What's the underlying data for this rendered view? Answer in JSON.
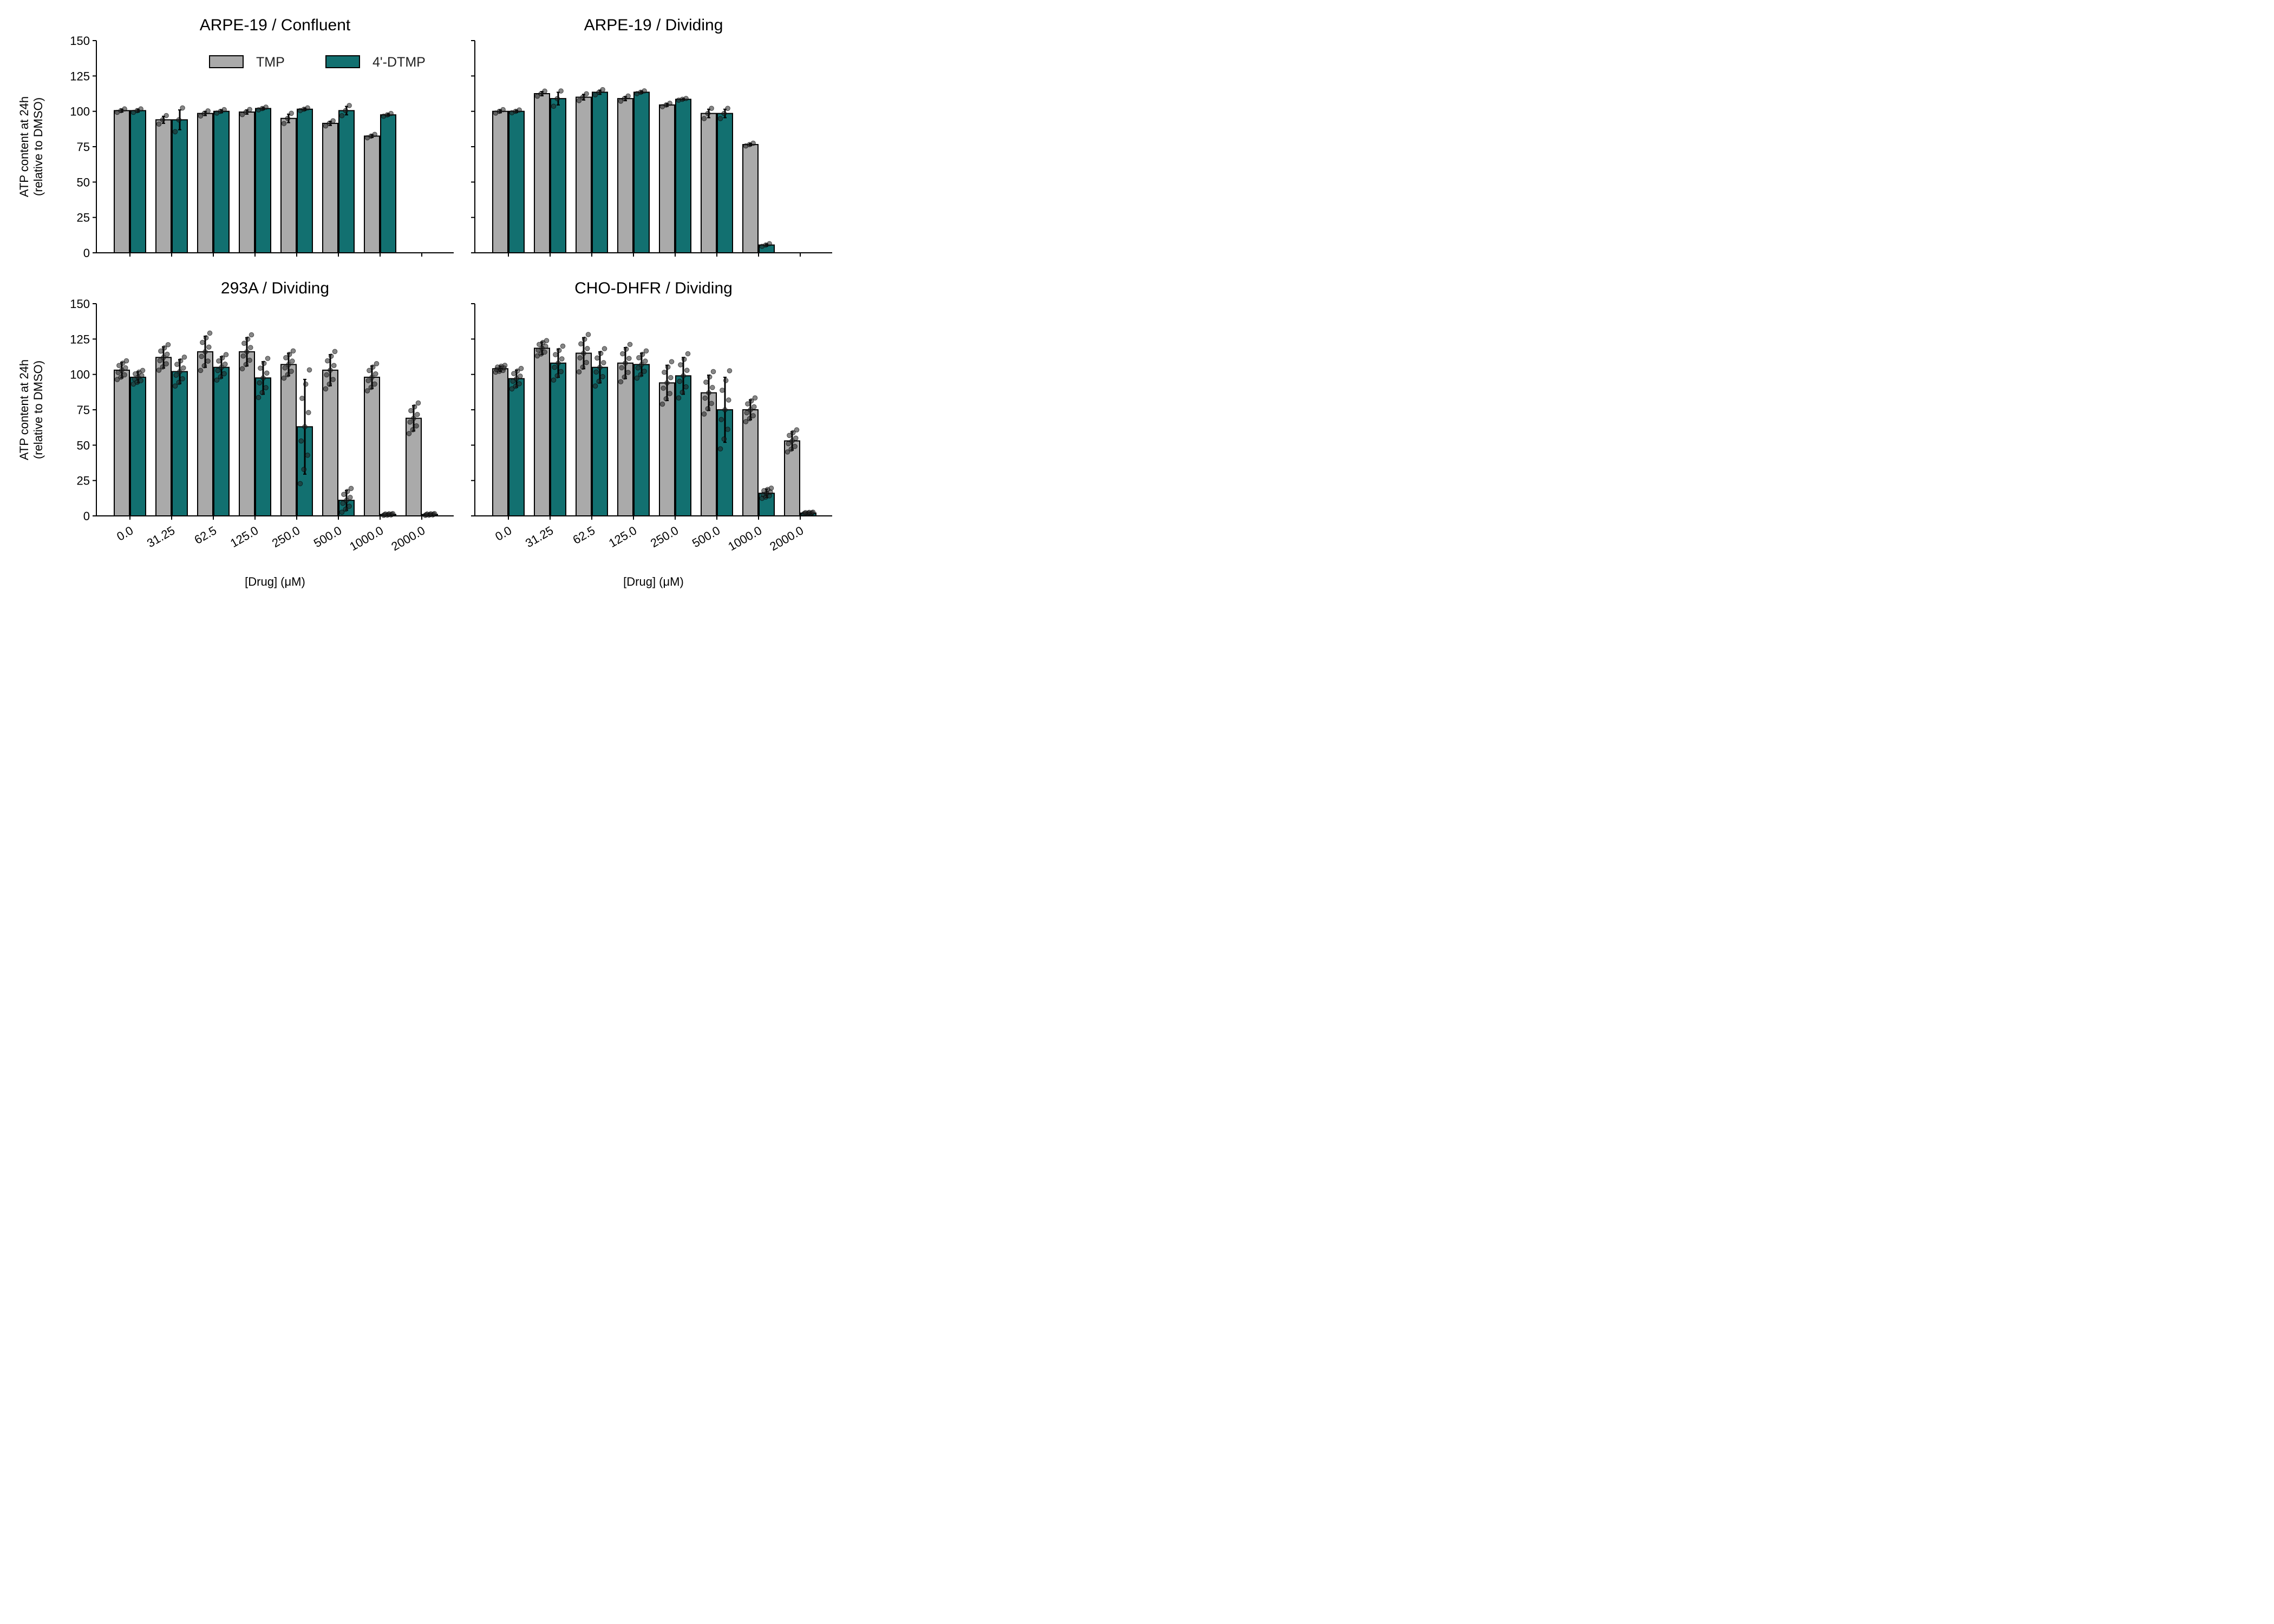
{
  "chart_data": {
    "type": "bar",
    "categories": [
      "0.0",
      "31.25",
      "62.5",
      "125.0",
      "250.0",
      "500.0",
      "1000.0",
      "2000.0"
    ],
    "ylim": [
      0,
      150
    ],
    "yticks": [
      "0",
      "25",
      "50",
      "75",
      "100",
      "125",
      "150"
    ],
    "ylabel_line1": "ATP content at 24h",
    "ylabel_line2": "(relative to DMSO)",
    "xlabel": "[Drug] (μM)",
    "legend": {
      "placement": "top-center",
      "entries": [
        "TMP",
        "4'-DTMP"
      ]
    },
    "colors": {
      "TMP": "#aaaaaa",
      "DTMP": "#127070",
      "edge": "#000000"
    },
    "panels": [
      {
        "title": "ARPE-19 / Confluent",
        "series": [
          {
            "name": "TMP",
            "values": [
              100.5,
              94,
              98.5,
              99.5,
              95,
              91.5,
              82.5,
              null
            ],
            "err": [
              1,
              2.5,
              1.5,
              1.5,
              3,
              1.5,
              1,
              null
            ]
          },
          {
            "name": "4'-DTMP",
            "values": [
              100.5,
              94,
              100,
              102,
              101.5,
              100.5,
              97.5,
              null
            ],
            "err": [
              1,
              7,
              1,
              0.8,
              0.8,
              3,
              0.8,
              null
            ]
          }
        ]
      },
      {
        "title": "ARPE-19 / Dividing",
        "series": [
          {
            "name": "TMP",
            "values": [
              100,
              112.5,
              110,
              109,
              104.5,
              98.5,
              76.5,
              null
            ],
            "err": [
              1,
              1.5,
              2,
              1.5,
              1,
              3,
              0.8,
              null
            ]
          },
          {
            "name": "4'-DTMP",
            "values": [
              100,
              109,
              113.5,
              113.5,
              108.5,
              98.5,
              5.5,
              null
            ],
            "err": [
              0.8,
              4.5,
              1.5,
              0.8,
              0.5,
              3,
              0.8,
              null
            ]
          }
        ]
      },
      {
        "title": "293A / Dividing",
        "series": [
          {
            "name": "TMP",
            "values": [
              103,
              112,
              116,
              116,
              107,
              103,
              98,
              69
            ],
            "err": [
              5.5,
              7.5,
              11,
              10,
              8,
              11,
              8,
              9
            ]
          },
          {
            "name": "4'-DTMP",
            "values": [
              98,
              102,
              105,
              97.5,
              63,
              11,
              1,
              1
            ],
            "err": [
              4,
              8.5,
              7.5,
              11.5,
              33.5,
              7,
              0.5,
              0.5
            ]
          }
        ]
      },
      {
        "title": "CHO-DHFR / Dividing",
        "series": [
          {
            "name": "TMP",
            "values": [
              104,
              118.5,
              115,
              108,
              94,
              87,
              75,
              53
            ],
            "err": [
              2,
              4.5,
              11,
              11,
              12.5,
              12.5,
              7,
              6.5
            ]
          },
          {
            "name": "4'-DTMP",
            "values": [
              97,
              108,
              105,
              107,
              99,
              75,
              16,
              2
            ],
            "err": [
              6,
              10,
              11,
              8,
              13,
              23,
              3,
              0.5
            ]
          }
        ]
      }
    ]
  }
}
